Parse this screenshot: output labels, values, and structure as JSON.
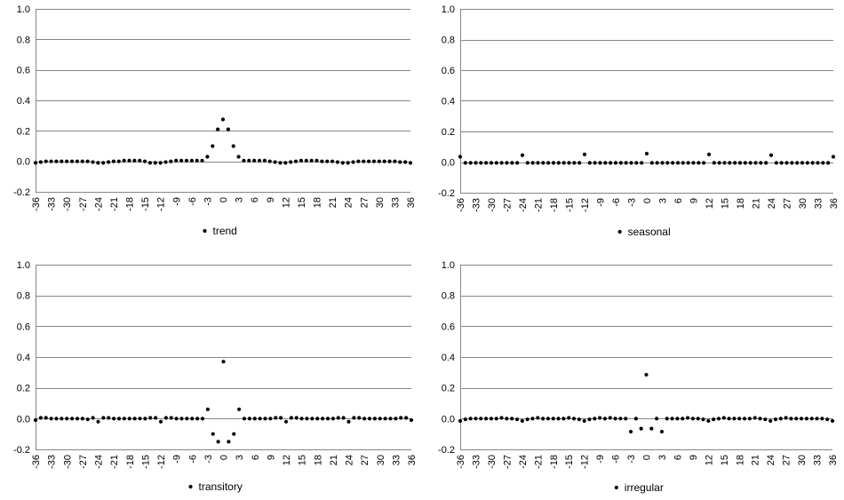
{
  "chart_data": [
    {
      "type": "scatter",
      "title": "",
      "xlabel": "",
      "ylabel": "",
      "ylim": [
        -0.2,
        1.0
      ],
      "yticks": [
        -0.2,
        0.0,
        0.2,
        0.4,
        0.6,
        0.8,
        1.0
      ],
      "ytick_labels": [
        "-0.2",
        "0.0",
        "0.2",
        "0.4",
        "0.6",
        "0.8",
        "1.0"
      ],
      "xlim": [
        -36,
        36
      ],
      "xticks": [
        -36,
        -33,
        -30,
        -27,
        -24,
        -21,
        -18,
        -15,
        -12,
        -9,
        -6,
        -3,
        0,
        3,
        6,
        9,
        12,
        15,
        18,
        21,
        24,
        27,
        30,
        33,
        36
      ],
      "grid": true,
      "legend_position": "bottom",
      "series": [
        {
          "name": "trend",
          "color": "#000000",
          "x": [
            -36,
            -35,
            -34,
            -33,
            -32,
            -31,
            -30,
            -29,
            -28,
            -27,
            -26,
            -25,
            -24,
            -23,
            -22,
            -21,
            -20,
            -19,
            -18,
            -17,
            -16,
            -15,
            -14,
            -13,
            -12,
            -11,
            -10,
            -9,
            -8,
            -7,
            -6,
            -5,
            -4,
            -3,
            -2,
            -1,
            0,
            1,
            2,
            3,
            4,
            5,
            6,
            7,
            8,
            9,
            10,
            11,
            12,
            13,
            14,
            15,
            16,
            17,
            18,
            19,
            20,
            21,
            22,
            23,
            24,
            25,
            26,
            27,
            28,
            29,
            30,
            31,
            32,
            33,
            34,
            35,
            36
          ],
          "y": [
            -0.01,
            -0.005,
            0,
            0,
            0,
            0,
            0,
            0,
            0,
            0,
            0,
            -0.005,
            -0.01,
            -0.01,
            -0.005,
            0,
            0,
            0.005,
            0.005,
            0.005,
            0.005,
            0,
            -0.01,
            -0.01,
            -0.01,
            -0.005,
            0,
            0.005,
            0.005,
            0.005,
            0.005,
            0.005,
            0.005,
            0.03,
            0.1,
            0.21,
            0.275,
            0.21,
            0.1,
            0.03,
            0.005,
            0.005,
            0.005,
            0.005,
            0.005,
            0,
            -0.005,
            -0.01,
            -0.01,
            -0.005,
            0,
            0.005,
            0.005,
            0.005,
            0.005,
            0,
            0,
            0,
            -0.005,
            -0.01,
            -0.01,
            -0.005,
            0,
            0,
            0,
            0,
            0,
            0,
            0,
            0,
            -0.005,
            -0.005,
            -0.01
          ]
        }
      ]
    },
    {
      "type": "scatter",
      "title": "",
      "xlabel": "",
      "ylabel": "",
      "ylim": [
        -0.2,
        1.0
      ],
      "yticks": [
        -0.2,
        0.0,
        0.2,
        0.4,
        0.6,
        0.8,
        1.0
      ],
      "ytick_labels": [
        "-0.2",
        "0.0",
        "0.2",
        "0.4",
        "0.6",
        "0.8",
        "1.0"
      ],
      "xlim": [
        -36,
        36
      ],
      "xticks": [
        -36,
        -33,
        -30,
        -27,
        -24,
        -21,
        -18,
        -15,
        -12,
        -9,
        -6,
        -3,
        0,
        3,
        6,
        9,
        12,
        15,
        18,
        21,
        24,
        27,
        30,
        33,
        36
      ],
      "grid": true,
      "legend_position": "bottom",
      "series": [
        {
          "name": "seasonal",
          "color": "#000000",
          "x": [
            -36,
            -35,
            -34,
            -33,
            -32,
            -31,
            -30,
            -29,
            -28,
            -27,
            -26,
            -25,
            -24,
            -23,
            -22,
            -21,
            -20,
            -19,
            -18,
            -17,
            -16,
            -15,
            -14,
            -13,
            -12,
            -11,
            -10,
            -9,
            -8,
            -7,
            -6,
            -5,
            -4,
            -3,
            -2,
            -1,
            0,
            1,
            2,
            3,
            4,
            5,
            6,
            7,
            8,
            9,
            10,
            11,
            12,
            13,
            14,
            15,
            16,
            17,
            18,
            19,
            20,
            21,
            22,
            23,
            24,
            25,
            26,
            27,
            28,
            29,
            30,
            31,
            32,
            33,
            34,
            35,
            36
          ],
          "y": [
            0.035,
            -0.005,
            -0.005,
            -0.005,
            -0.005,
            -0.005,
            -0.005,
            -0.005,
            -0.005,
            -0.005,
            -0.005,
            -0.005,
            0.045,
            -0.005,
            -0.005,
            -0.005,
            -0.005,
            -0.005,
            -0.005,
            -0.005,
            -0.005,
            -0.005,
            -0.005,
            -0.005,
            0.05,
            -0.005,
            -0.005,
            -0.005,
            -0.005,
            -0.005,
            -0.005,
            -0.005,
            -0.005,
            -0.005,
            -0.005,
            -0.005,
            0.055,
            -0.005,
            -0.005,
            -0.005,
            -0.005,
            -0.005,
            -0.005,
            -0.005,
            -0.005,
            -0.005,
            -0.005,
            -0.005,
            0.05,
            -0.005,
            -0.005,
            -0.005,
            -0.005,
            -0.005,
            -0.005,
            -0.005,
            -0.005,
            -0.005,
            -0.005,
            -0.005,
            0.045,
            -0.005,
            -0.005,
            -0.005,
            -0.005,
            -0.005,
            -0.005,
            -0.005,
            -0.005,
            -0.005,
            -0.005,
            -0.005,
            0.035
          ]
        }
      ]
    },
    {
      "type": "scatter",
      "title": "",
      "xlabel": "",
      "ylabel": "",
      "ylim": [
        -0.2,
        1.0
      ],
      "yticks": [
        -0.2,
        0.0,
        0.2,
        0.4,
        0.6,
        0.8,
        1.0
      ],
      "ytick_labels": [
        "-0.2",
        "0.0",
        "0.2",
        "0.4",
        "0.6",
        "0.8",
        "1.0"
      ],
      "xlim": [
        -36,
        36
      ],
      "xticks": [
        -36,
        -33,
        -30,
        -27,
        -24,
        -21,
        -18,
        -15,
        -12,
        -9,
        -6,
        -3,
        0,
        3,
        6,
        9,
        12,
        15,
        18,
        21,
        24,
        27,
        30,
        33,
        36
      ],
      "grid": true,
      "legend_position": "bottom",
      "series": [
        {
          "name": "transitory",
          "color": "#000000",
          "x": [
            -36,
            -35,
            -34,
            -33,
            -32,
            -31,
            -30,
            -29,
            -28,
            -27,
            -26,
            -25,
            -24,
            -23,
            -22,
            -21,
            -20,
            -19,
            -18,
            -17,
            -16,
            -15,
            -14,
            -13,
            -12,
            -11,
            -10,
            -9,
            -8,
            -7,
            -6,
            -5,
            -4,
            -3,
            -2,
            -1,
            0,
            1,
            2,
            3,
            4,
            5,
            6,
            7,
            8,
            9,
            10,
            11,
            12,
            13,
            14,
            15,
            16,
            17,
            18,
            19,
            20,
            21,
            22,
            23,
            24,
            25,
            26,
            27,
            28,
            29,
            30,
            31,
            32,
            33,
            34,
            35,
            36
          ],
          "y": [
            -0.01,
            0.005,
            0.005,
            0,
            0,
            0,
            0,
            0,
            0,
            0,
            -0.005,
            0.005,
            -0.02,
            0.005,
            0.005,
            0,
            0,
            0,
            0,
            0,
            0,
            0,
            0.005,
            0.005,
            -0.02,
            0.005,
            0.005,
            0,
            0,
            0,
            0,
            0,
            0,
            0.06,
            -0.1,
            -0.15,
            0.37,
            -0.15,
            -0.1,
            0.06,
            0,
            0,
            0,
            0,
            0,
            0,
            0.005,
            0.005,
            -0.02,
            0.005,
            0.005,
            0,
            0,
            0,
            0,
            0,
            0,
            0,
            0.005,
            0.005,
            -0.02,
            0.005,
            0.005,
            0,
            0,
            0,
            0,
            0,
            0,
            0,
            0.005,
            0.005,
            -0.01
          ]
        }
      ]
    },
    {
      "type": "scatter",
      "title": "",
      "xlabel": "",
      "ylabel": "",
      "ylim": [
        -0.2,
        1.0
      ],
      "yticks": [
        -0.2,
        0.0,
        0.2,
        0.4,
        0.6,
        0.8,
        1.0
      ],
      "ytick_labels": [
        "-0.2",
        "0.0",
        "0.2",
        "0.4",
        "0.6",
        "0.8",
        "1.0"
      ],
      "xlim": [
        -36,
        36
      ],
      "xticks": [
        -36,
        -33,
        -30,
        -27,
        -24,
        -21,
        -18,
        -15,
        -12,
        -9,
        -6,
        -3,
        0,
        3,
        6,
        9,
        12,
        15,
        18,
        21,
        24,
        27,
        30,
        33,
        36
      ],
      "grid": true,
      "legend_position": "bottom",
      "series": [
        {
          "name": "irregular",
          "color": "#000000",
          "x": [
            -36,
            -35,
            -34,
            -33,
            -32,
            -31,
            -30,
            -29,
            -28,
            -27,
            -26,
            -25,
            -24,
            -23,
            -22,
            -21,
            -20,
            -19,
            -18,
            -17,
            -16,
            -15,
            -14,
            -13,
            -12,
            -11,
            -10,
            -9,
            -8,
            -7,
            -6,
            -5,
            -4,
            -3,
            -2,
            -1,
            0,
            1,
            2,
            3,
            4,
            5,
            6,
            7,
            8,
            9,
            10,
            11,
            12,
            13,
            14,
            15,
            16,
            17,
            18,
            19,
            20,
            21,
            22,
            23,
            24,
            25,
            26,
            27,
            28,
            29,
            30,
            31,
            32,
            33,
            34,
            35,
            36
          ],
          "y": [
            -0.015,
            -0.005,
            0,
            0,
            0,
            0,
            0,
            0,
            0.005,
            0,
            0,
            -0.005,
            -0.015,
            -0.005,
            0,
            0.005,
            0,
            0,
            0,
            0,
            0,
            0.005,
            0,
            -0.005,
            -0.015,
            -0.005,
            0,
            0.005,
            0,
            0.005,
            0,
            0,
            0,
            -0.085,
            0,
            -0.065,
            0.285,
            -0.065,
            0,
            -0.085,
            0,
            0,
            0,
            0,
            0.005,
            0,
            0,
            -0.005,
            -0.015,
            -0.005,
            0,
            0.005,
            0,
            0,
            0,
            0,
            0,
            0.005,
            0,
            -0.005,
            -0.015,
            -0.005,
            0,
            0.005,
            0,
            0,
            0,
            0,
            0,
            0,
            0,
            -0.005,
            -0.015
          ]
        }
      ]
    }
  ]
}
